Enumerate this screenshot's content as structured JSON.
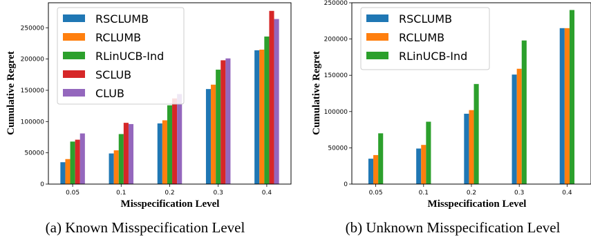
{
  "colors": {
    "RSCLUMB": "#1f77b4",
    "RCLUMB": "#ff7f0e",
    "RLinUCB-Ind": "#2ca02c",
    "SCLUB": "#d62728",
    "CLUB": "#9467bd"
  },
  "chart_data": [
    {
      "type": "bar",
      "caption": "(a) Known Misspecification Level",
      "xlabel": "Misspecification Level",
      "ylabel": "Cumulative Regret",
      "categories": [
        "0.05",
        "0.1",
        "0.2",
        "0.3",
        "0.4"
      ],
      "ylim": [
        0,
        290000
      ],
      "yticks": [
        0,
        50000,
        100000,
        150000,
        200000,
        250000
      ],
      "legend_position": "top-left",
      "series": [
        {
          "name": "RSCLUMB",
          "values": [
            35000,
            49000,
            97000,
            152000,
            214000
          ]
        },
        {
          "name": "RCLUMB",
          "values": [
            40000,
            54000,
            102000,
            159000,
            215000
          ]
        },
        {
          "name": "RLinUCB-Ind",
          "values": [
            68000,
            80000,
            126000,
            183000,
            236000
          ]
        },
        {
          "name": "SCLUB",
          "values": [
            71000,
            98000,
            137000,
            198000,
            277000
          ]
        },
        {
          "name": "CLUB",
          "values": [
            81000,
            96000,
            144000,
            201000,
            264000
          ]
        }
      ]
    },
    {
      "type": "bar",
      "caption": "(b) Unknown Misspecification Level",
      "xlabel": "Misspecification Level",
      "ylabel": "Cumulative Regret",
      "categories": [
        "0.05",
        "0.1",
        "0.2",
        "0.3",
        "0.4"
      ],
      "ylim": [
        0,
        250000
      ],
      "yticks": [
        0,
        50000,
        100000,
        150000,
        200000,
        250000
      ],
      "legend_position": "top-left",
      "series": [
        {
          "name": "RSCLUMB",
          "values": [
            35000,
            49000,
            97000,
            151000,
            215000
          ]
        },
        {
          "name": "RCLUMB",
          "values": [
            40000,
            54000,
            102000,
            159000,
            215000
          ]
        },
        {
          "name": "RLinUCB-Ind",
          "values": [
            70000,
            86000,
            138000,
            198000,
            240000
          ]
        }
      ]
    }
  ]
}
